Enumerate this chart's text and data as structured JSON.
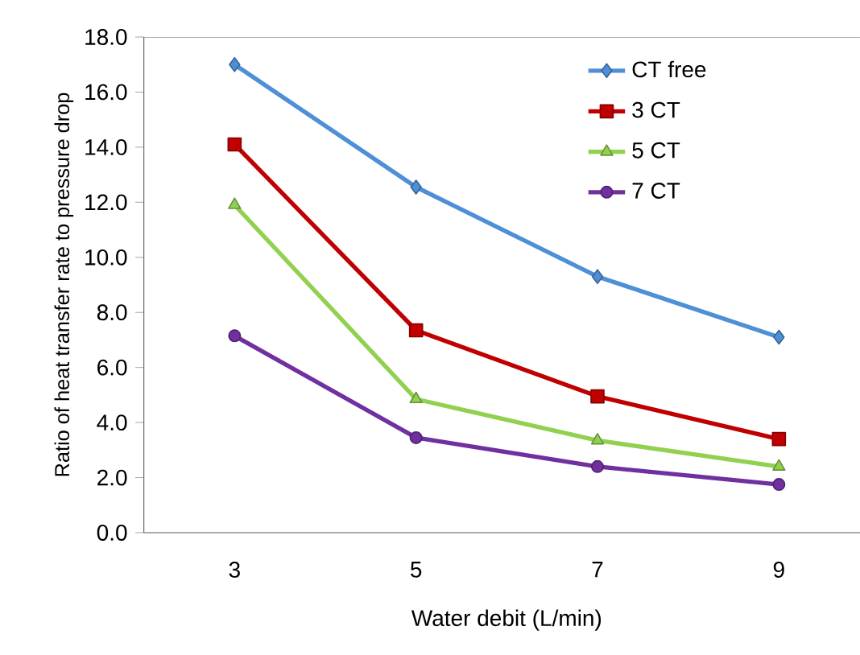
{
  "chart_data": {
    "type": "line",
    "xlabel": "Water debit (L/min)",
    "ylabel": "Ratio of heat transfer rate to pressure drop",
    "categories": [
      "3",
      "5",
      "7",
      "9"
    ],
    "series": [
      {
        "name": "CT free",
        "color": "#4f8fd6",
        "marker": "diamond",
        "values": [
          17.0,
          12.55,
          9.3,
          7.1
        ]
      },
      {
        "name": "3 CT",
        "color": "#c00000",
        "marker": "square",
        "values": [
          14.1,
          7.35,
          4.95,
          3.4
        ]
      },
      {
        "name": "5 CT",
        "color": "#92d050",
        "marker": "triangle",
        "values": [
          11.9,
          4.85,
          3.35,
          2.4
        ]
      },
      {
        "name": "7 CT",
        "color": "#7030a0",
        "marker": "circle",
        "values": [
          7.15,
          3.45,
          2.4,
          1.75
        ]
      }
    ],
    "ylim": [
      0,
      18
    ],
    "yticks": [
      {
        "value": 0,
        "label": "0.0"
      },
      {
        "value": 2,
        "label": "2.0"
      },
      {
        "value": 4,
        "label": "4.0"
      },
      {
        "value": 6,
        "label": "6.0"
      },
      {
        "value": 8,
        "label": "8.0"
      },
      {
        "value": 10,
        "label": "10.0"
      },
      {
        "value": 12,
        "label": "12.0"
      },
      {
        "value": 14,
        "label": "14.0"
      },
      {
        "value": 16,
        "label": "16.0"
      },
      {
        "value": 18,
        "label": "18.0"
      }
    ],
    "grid": false,
    "legend": "top right"
  }
}
